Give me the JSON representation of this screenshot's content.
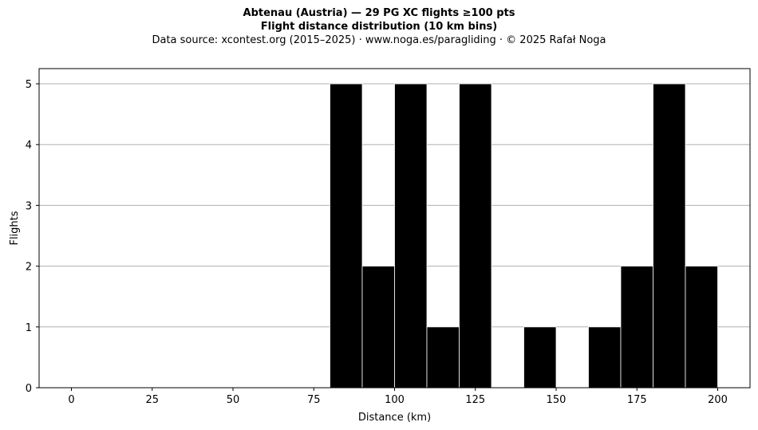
{
  "header": {
    "title": "Abtenau (Austria)  —  29 PG XC flights ≥100 pts",
    "subtitle": "Flight distance distribution (10 km bins)",
    "source": "Data source: xcontest.org (2015–2025)  ·  www.noga.es/paragliding  ·  © 2025 Rafał Noga"
  },
  "chart_data": {
    "type": "bar",
    "title": "Abtenau (Austria)  —  29 PG XC flights ≥100 pts",
    "subtitle": "Flight distance distribution (10 km bins)",
    "xlabel": "Distance (km)",
    "ylabel": "Flights",
    "bin_width": 10,
    "bins": [
      {
        "start": 80,
        "end": 90,
        "count": 5
      },
      {
        "start": 90,
        "end": 100,
        "count": 2
      },
      {
        "start": 100,
        "end": 110,
        "count": 5
      },
      {
        "start": 110,
        "end": 120,
        "count": 1
      },
      {
        "start": 120,
        "end": 130,
        "count": 5
      },
      {
        "start": 130,
        "end": 140,
        "count": 0
      },
      {
        "start": 140,
        "end": 150,
        "count": 1
      },
      {
        "start": 150,
        "end": 160,
        "count": 0
      },
      {
        "start": 160,
        "end": 170,
        "count": 1
      },
      {
        "start": 170,
        "end": 180,
        "count": 2
      },
      {
        "start": 180,
        "end": 190,
        "count": 5
      },
      {
        "start": 190,
        "end": 200,
        "count": 2
      }
    ],
    "xlim": [
      -10,
      210
    ],
    "ylim": [
      0,
      5.25
    ],
    "xticks": [
      0,
      25,
      50,
      75,
      100,
      125,
      150,
      175,
      200
    ],
    "yticks": [
      0,
      1,
      2,
      3,
      4,
      5
    ],
    "grid": "y",
    "bar_color": "#000000",
    "bar_edge_color": "#ffffff",
    "grid_color": "#b0b0b0"
  }
}
